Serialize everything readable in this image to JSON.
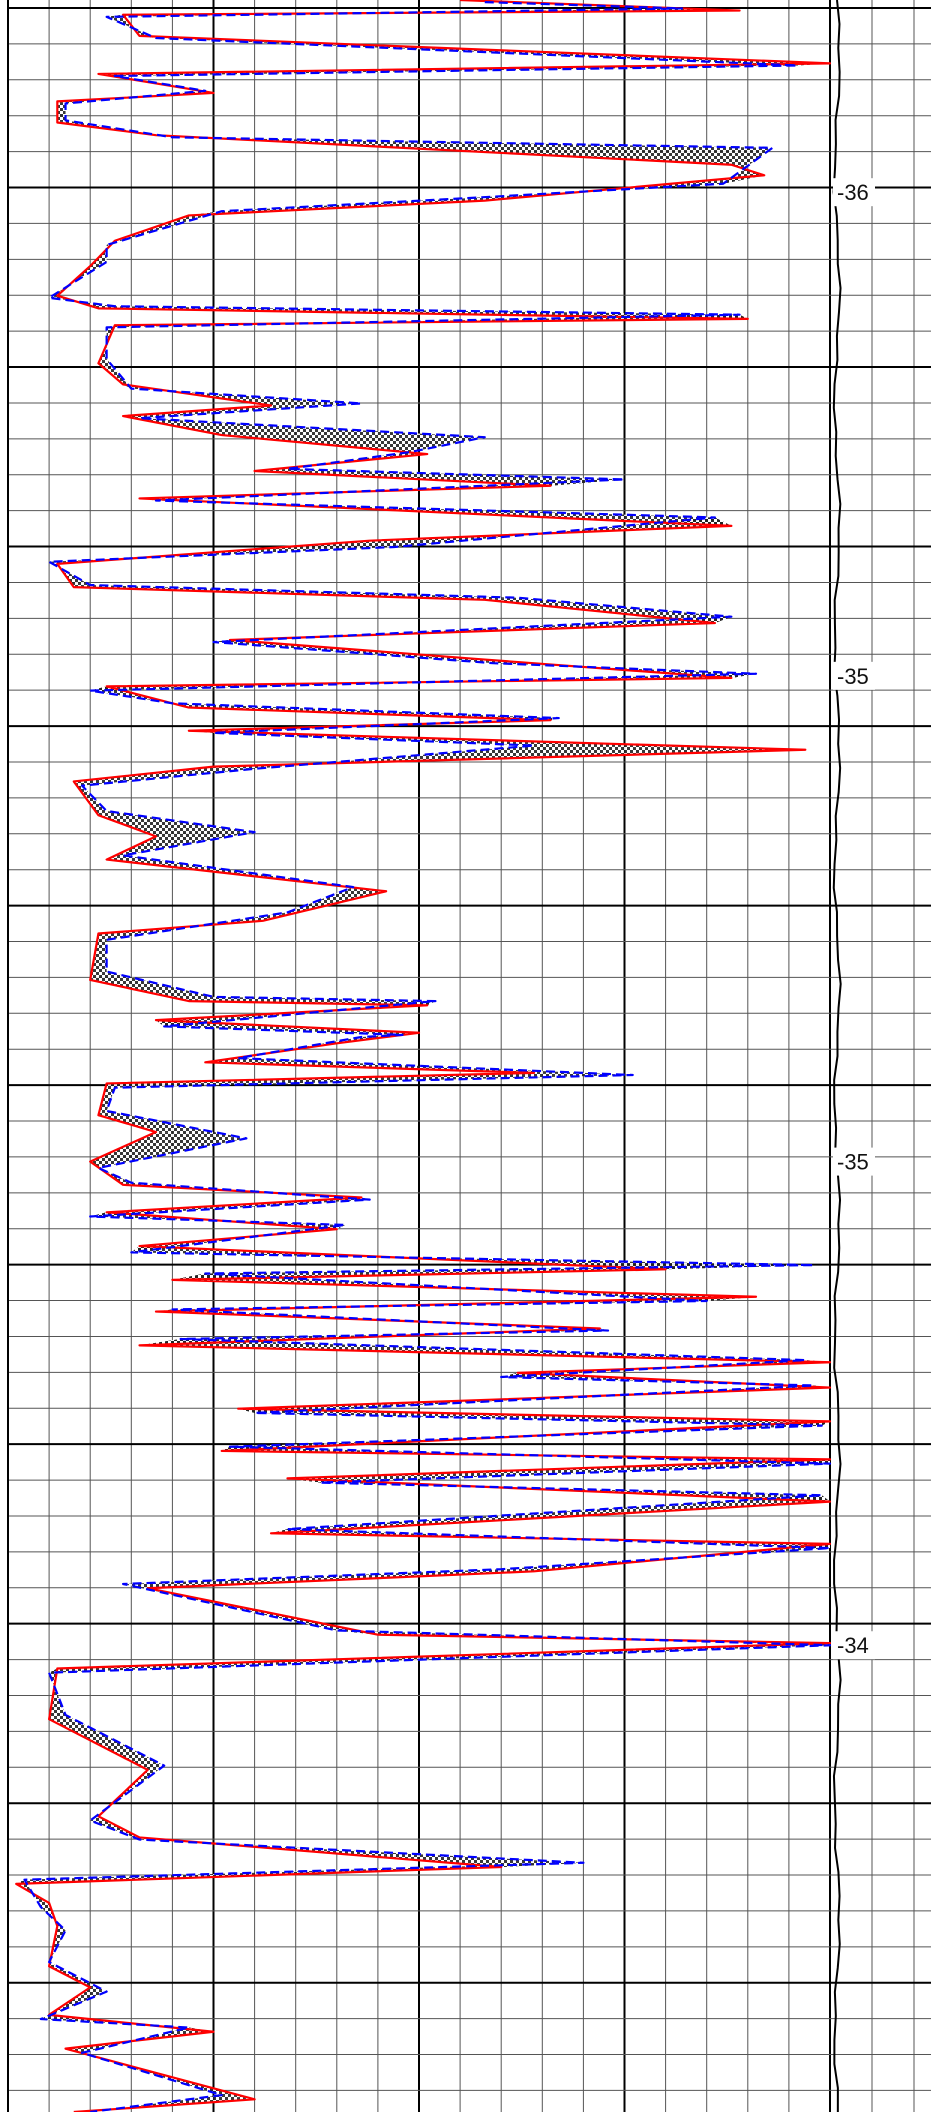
{
  "chart_data": {
    "type": "line",
    "title": "",
    "xlabel": "",
    "ylabel": "",
    "orientation": "vertical-depth-track",
    "x_range": [
      0,
      100
    ],
    "y_range": [
      0,
      100
    ],
    "grid": true,
    "grid_minor_step": 5,
    "grid_major_step": 25,
    "depth_labels": [
      "-36",
      "-35",
      "-35",
      "-34"
    ],
    "depth_label_positions": [
      9.1,
      32.0,
      55.0,
      77.9
    ],
    "fill_pattern": "checkerboard",
    "colors": {
      "red_curve": "#ff0000",
      "blue_curve": "#0000ff",
      "grid_minor": "#555555",
      "grid_major": "#000000",
      "baseline": "#000000",
      "fill_dark": "#222222",
      "fill_light": "#ffffff"
    },
    "series": [
      {
        "color_key": "red_curve",
        "dash": "solid",
        "points": [
          [
            55,
            0
          ],
          [
            89,
            0.5
          ],
          [
            14,
            0.7
          ],
          [
            16,
            1.7
          ],
          [
            100,
            3.0
          ],
          [
            11,
            3.5
          ],
          [
            25,
            4.4
          ],
          [
            6,
            4.8
          ],
          [
            6,
            5.8
          ],
          [
            18,
            6.4
          ],
          [
            88,
            7.8
          ],
          [
            92,
            8.3
          ],
          [
            58,
            9.5
          ],
          [
            22,
            10.2
          ],
          [
            13,
            11.4
          ],
          [
            10,
            12.6
          ],
          [
            6,
            14.0
          ],
          [
            11,
            14.6
          ],
          [
            90,
            15.1
          ],
          [
            13,
            15.4
          ],
          [
            11,
            17.2
          ],
          [
            14,
            18.2
          ],
          [
            32,
            19.2
          ],
          [
            14,
            19.7
          ],
          [
            26,
            20.6
          ],
          [
            51,
            21.5
          ],
          [
            30,
            22.3
          ],
          [
            66,
            23.0
          ],
          [
            16,
            23.6
          ],
          [
            88,
            24.9
          ],
          [
            44,
            25.6
          ],
          [
            6,
            26.7
          ],
          [
            8,
            27.8
          ],
          [
            58,
            28.4
          ],
          [
            86,
            29.5
          ],
          [
            27,
            30.3
          ],
          [
            57,
            31.2
          ],
          [
            88,
            32.1
          ],
          [
            12,
            32.5
          ],
          [
            22,
            33.5
          ],
          [
            66,
            34.1
          ],
          [
            22,
            34.6
          ],
          [
            97,
            35.5
          ],
          [
            25,
            36.3
          ],
          [
            8,
            37.0
          ],
          [
            11,
            38.6
          ],
          [
            18,
            39.6
          ],
          [
            12,
            40.7
          ],
          [
            46,
            42.2
          ],
          [
            31,
            43.6
          ],
          [
            11,
            44.2
          ],
          [
            10,
            46.4
          ],
          [
            22,
            47.4
          ],
          [
            51,
            47.6
          ],
          [
            18,
            48.3
          ],
          [
            50,
            48.9
          ],
          [
            40,
            49.4
          ],
          [
            24,
            50.3
          ],
          [
            64,
            50.8
          ],
          [
            12,
            51.3
          ],
          [
            11,
            52.8
          ],
          [
            18,
            53.6
          ],
          [
            10,
            55.0
          ],
          [
            14,
            56.1
          ],
          [
            43,
            56.7
          ],
          [
            12,
            57.4
          ],
          [
            40,
            58.2
          ],
          [
            16,
            59.0
          ],
          [
            80,
            60.1
          ],
          [
            20,
            60.6
          ],
          [
            91,
            61.4
          ],
          [
            18,
            62.1
          ],
          [
            72,
            62.9
          ],
          [
            16,
            63.7
          ],
          [
            100,
            64.5
          ],
          [
            62,
            65.0
          ],
          [
            100,
            65.7
          ],
          [
            28,
            66.7
          ],
          [
            100,
            67.3
          ],
          [
            26,
            68.7
          ],
          [
            100,
            69.1
          ],
          [
            34,
            70.0
          ],
          [
            100,
            71.1
          ],
          [
            32,
            72.6
          ],
          [
            100,
            73.1
          ],
          [
            64,
            74.4
          ],
          [
            17,
            75.2
          ],
          [
            45,
            77.4
          ],
          [
            100,
            77.8
          ],
          [
            6,
            79.0
          ],
          [
            5,
            81.4
          ],
          [
            17,
            83.8
          ],
          [
            11,
            86.0
          ],
          [
            16,
            87.0
          ],
          [
            60,
            88.4
          ],
          [
            1,
            89.2
          ],
          [
            5,
            90.1
          ],
          [
            6,
            91.2
          ],
          [
            5,
            93.1
          ],
          [
            10,
            94.1
          ],
          [
            5,
            95.4
          ],
          [
            25,
            96.2
          ],
          [
            7,
            97.0
          ],
          [
            30,
            99.4
          ],
          [
            8,
            100
          ]
        ]
      },
      {
        "color_key": "blue_curve",
        "dash": "dashed",
        "points": [
          [
            58,
            0.1
          ],
          [
            82,
            0.4
          ],
          [
            12,
            0.8
          ],
          [
            18,
            1.8
          ],
          [
            96,
            3.1
          ],
          [
            13,
            3.6
          ],
          [
            24,
            4.3
          ],
          [
            7,
            4.9
          ],
          [
            7,
            5.7
          ],
          [
            20,
            6.5
          ],
          [
            93,
            7.0
          ],
          [
            87,
            8.7
          ],
          [
            55,
            9.4
          ],
          [
            26,
            10.0
          ],
          [
            12,
            11.6
          ],
          [
            12,
            12.4
          ],
          [
            5,
            14.1
          ],
          [
            13,
            14.5
          ],
          [
            89,
            14.9
          ],
          [
            12,
            15.5
          ],
          [
            12,
            17.0
          ],
          [
            15,
            18.4
          ],
          [
            43,
            19.1
          ],
          [
            16,
            19.8
          ],
          [
            58,
            20.7
          ],
          [
            49,
            21.4
          ],
          [
            34,
            22.2
          ],
          [
            75,
            22.7
          ],
          [
            18,
            23.7
          ],
          [
            86,
            24.5
          ],
          [
            47,
            25.9
          ],
          [
            5,
            26.6
          ],
          [
            10,
            27.7
          ],
          [
            62,
            28.3
          ],
          [
            88,
            29.2
          ],
          [
            25,
            30.4
          ],
          [
            59,
            31.4
          ],
          [
            91,
            31.9
          ],
          [
            10,
            32.7
          ],
          [
            20,
            33.3
          ],
          [
            67,
            34.0
          ],
          [
            25,
            34.7
          ],
          [
            64,
            35.3
          ],
          [
            30,
            36.4
          ],
          [
            9,
            37.2
          ],
          [
            12,
            38.4
          ],
          [
            30,
            39.4
          ],
          [
            14,
            40.5
          ],
          [
            42,
            42.0
          ],
          [
            34,
            43.2
          ],
          [
            12,
            44.5
          ],
          [
            12,
            46.0
          ],
          [
            25,
            47.2
          ],
          [
            52,
            47.4
          ],
          [
            19,
            48.6
          ],
          [
            48,
            49.0
          ],
          [
            43,
            49.1
          ],
          [
            28,
            50.1
          ],
          [
            76,
            50.9
          ],
          [
            13,
            51.5
          ],
          [
            12,
            52.6
          ],
          [
            29,
            53.9
          ],
          [
            11,
            55.3
          ],
          [
            15,
            56.0
          ],
          [
            44,
            56.8
          ],
          [
            10,
            57.6
          ],
          [
            41,
            58.0
          ],
          [
            15,
            59.3
          ],
          [
            98,
            59.9
          ],
          [
            24,
            60.3
          ],
          [
            85,
            61.6
          ],
          [
            20,
            62.0
          ],
          [
            73,
            63.0
          ],
          [
            21,
            63.4
          ],
          [
            97,
            64.4
          ],
          [
            60,
            65.2
          ],
          [
            98,
            65.6
          ],
          [
            30,
            66.9
          ],
          [
            99,
            67.5
          ],
          [
            27,
            68.5
          ],
          [
            100,
            69.3
          ],
          [
            38,
            70.2
          ],
          [
            99,
            70.8
          ],
          [
            34,
            72.4
          ],
          [
            100,
            73.3
          ],
          [
            60,
            74.3
          ],
          [
            14,
            75.0
          ],
          [
            40,
            77.2
          ],
          [
            100,
            77.9
          ],
          [
            5,
            79.2
          ],
          [
            7,
            81.2
          ],
          [
            19,
            83.6
          ],
          [
            10,
            86.2
          ],
          [
            16,
            87.1
          ],
          [
            70,
            88.2
          ],
          [
            2,
            89.0
          ],
          [
            4,
            90.3
          ],
          [
            7,
            91.4
          ],
          [
            5,
            92.9
          ],
          [
            12,
            94.3
          ],
          [
            4,
            95.6
          ],
          [
            22,
            96.0
          ],
          [
            9,
            97.2
          ],
          [
            26,
            99.2
          ],
          [
            10,
            100
          ]
        ]
      }
    ]
  }
}
